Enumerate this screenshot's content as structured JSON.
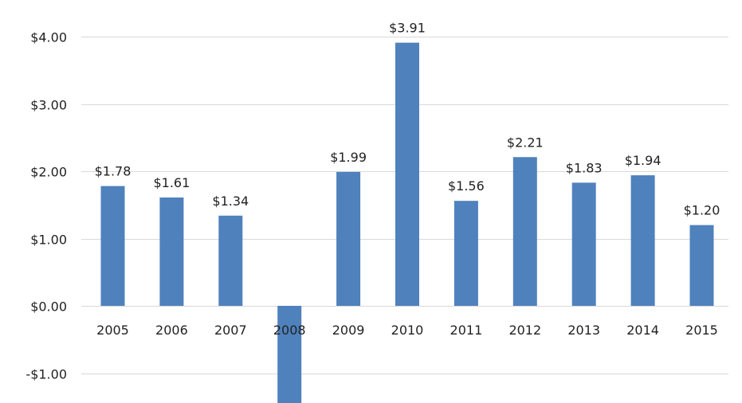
{
  "chart_data": {
    "type": "bar",
    "title": "",
    "xlabel": "",
    "ylabel": "",
    "categories": [
      "2005",
      "2006",
      "2007",
      "2008",
      "2009",
      "2010",
      "2011",
      "2012",
      "2013",
      "2014",
      "2015"
    ],
    "values": [
      1.78,
      1.61,
      1.34,
      -1.45,
      1.99,
      3.91,
      1.56,
      2.21,
      1.83,
      1.94,
      1.2
    ],
    "data_labels": [
      "$1.78",
      "$1.61",
      "$1.34",
      "",
      "$1.99",
      "$3.91",
      "$1.56",
      "$2.21",
      "$1.83",
      "$1.94",
      "$1.20"
    ],
    "y_ticks": [
      4,
      3,
      2,
      1,
      0,
      -1
    ],
    "y_tick_labels": [
      "$4.00",
      "$3.00",
      "$2.00",
      "$1.00",
      "$0.00",
      "-$1.00"
    ],
    "ylim": [
      -1.45,
      4.0
    ],
    "grid": true,
    "legend": "none",
    "bar_color": "#4f81bd",
    "grid_color": "#d9d9d9"
  }
}
